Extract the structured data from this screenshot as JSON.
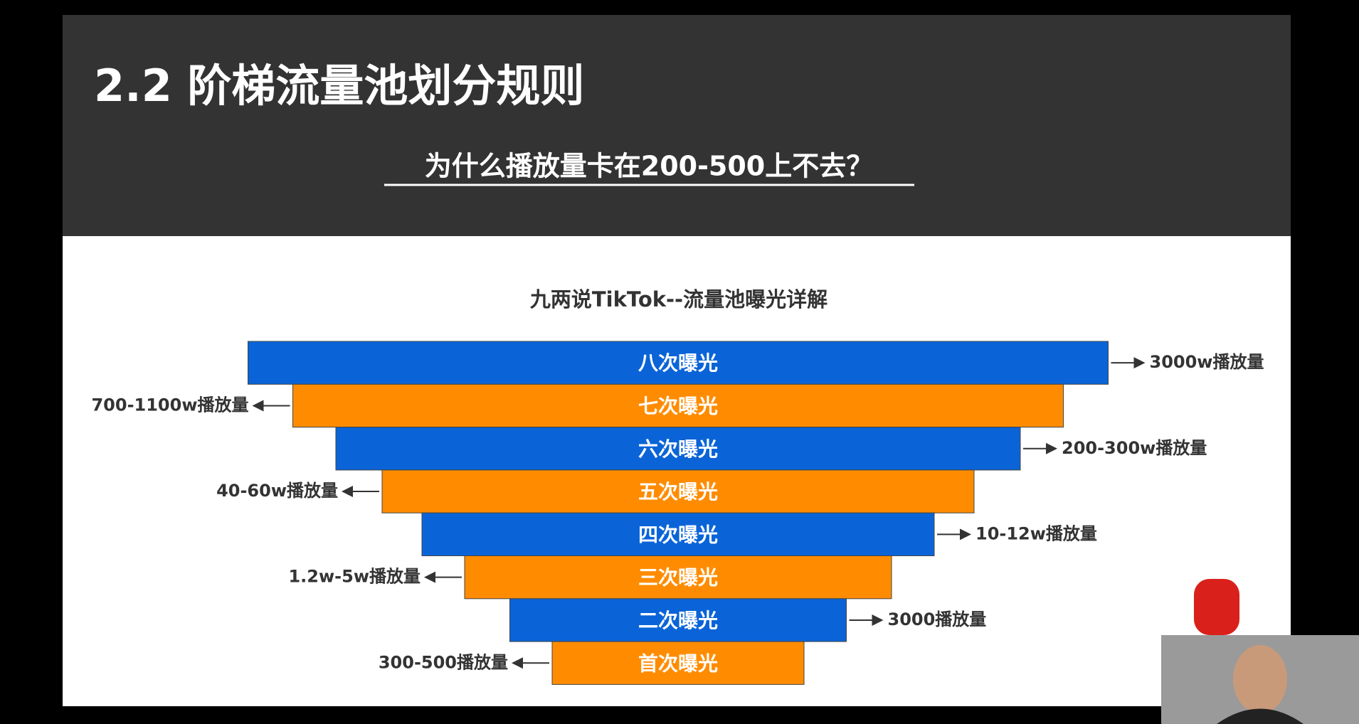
{
  "header": {
    "title": "2.2 阶梯流量池划分规则",
    "subtitle": "为什么播放量卡在200-500上不去？"
  },
  "diagram": {
    "title": "九两说TikTok--流量池曝光详解",
    "levels": [
      {
        "label": "八次曝光",
        "views": "3000w播放量"
      },
      {
        "label": "七次曝光",
        "views": "700-1100w播放量"
      },
      {
        "label": "六次曝光",
        "views": "200-300w播放量"
      },
      {
        "label": "五次曝光",
        "views": "40-60w播放量"
      },
      {
        "label": "四次曝光",
        "views": "10-12w播放量"
      },
      {
        "label": "三次曝光",
        "views": "1.2w-5w播放量"
      },
      {
        "label": "二次曝光",
        "views": "3000播放量"
      },
      {
        "label": "首次曝光",
        "views": "300-500播放量"
      }
    ]
  }
}
